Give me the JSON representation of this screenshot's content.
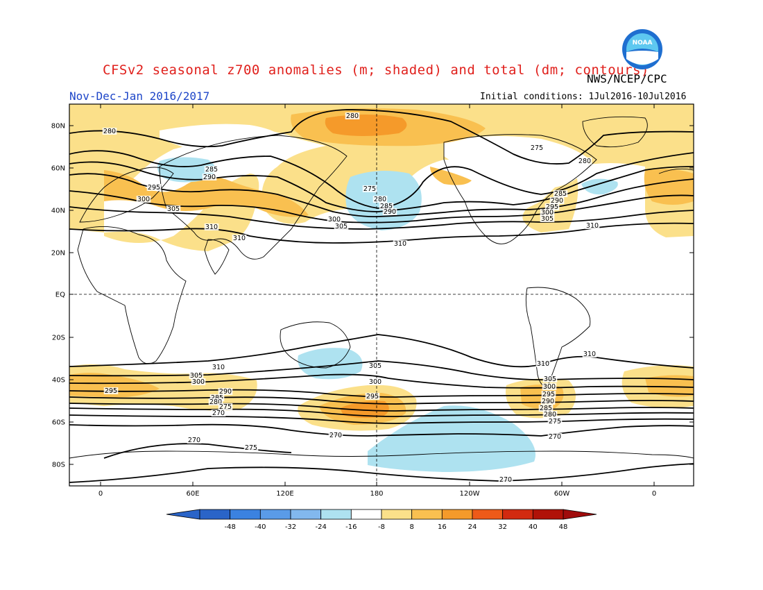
{
  "header": {
    "title": "CFSv2 seasonal z700 anomalies (m; shaded) and total (dm; contours)",
    "agency": "NWS/NCEP/CPC",
    "period": "Nov-Dec-Jan 2016/2017",
    "initial_conditions": "Initial conditions: 1Jul2016-10Jul2016",
    "logo_text": "NOAA"
  },
  "map": {
    "lat_labels": [
      "80N",
      "60N",
      "40N",
      "20N",
      "EQ",
      "20S",
      "40S",
      "60S",
      "80S"
    ],
    "lon_labels": [
      "0",
      "60E",
      "120E",
      "180",
      "120W",
      "60W",
      "0"
    ],
    "contour_labels": [
      "280",
      "280",
      "285",
      "290",
      "295",
      "300",
      "305",
      "310",
      "310",
      "275",
      "280",
      "285",
      "290",
      "300",
      "305",
      "310",
      "275",
      "280",
      "285",
      "290",
      "295",
      "300",
      "305",
      "310",
      "310",
      "305",
      "300",
      "295",
      "290",
      "285",
      "280",
      "275",
      "270",
      "305",
      "300",
      "295",
      "270",
      "275",
      "270",
      "270",
      "310",
      "305",
      "300",
      "295",
      "290",
      "285",
      "280",
      "275",
      "270",
      "310"
    ]
  },
  "colorbar": {
    "labels": [
      "-48",
      "-40",
      "-32",
      "-24",
      "-16",
      "-8",
      "8",
      "16",
      "24",
      "32",
      "40",
      "48"
    ],
    "colors": [
      "#2a64c8",
      "#3b82e0",
      "#5a9be8",
      "#82b8ee",
      "#aee2f0",
      "#ffffff",
      "#fbe08a",
      "#f9c050",
      "#f59a2a",
      "#ee5a18",
      "#d22a10",
      "#b01208"
    ],
    "left_arrow": "#2a64c8",
    "right_arrow": "#a00c0c"
  }
}
